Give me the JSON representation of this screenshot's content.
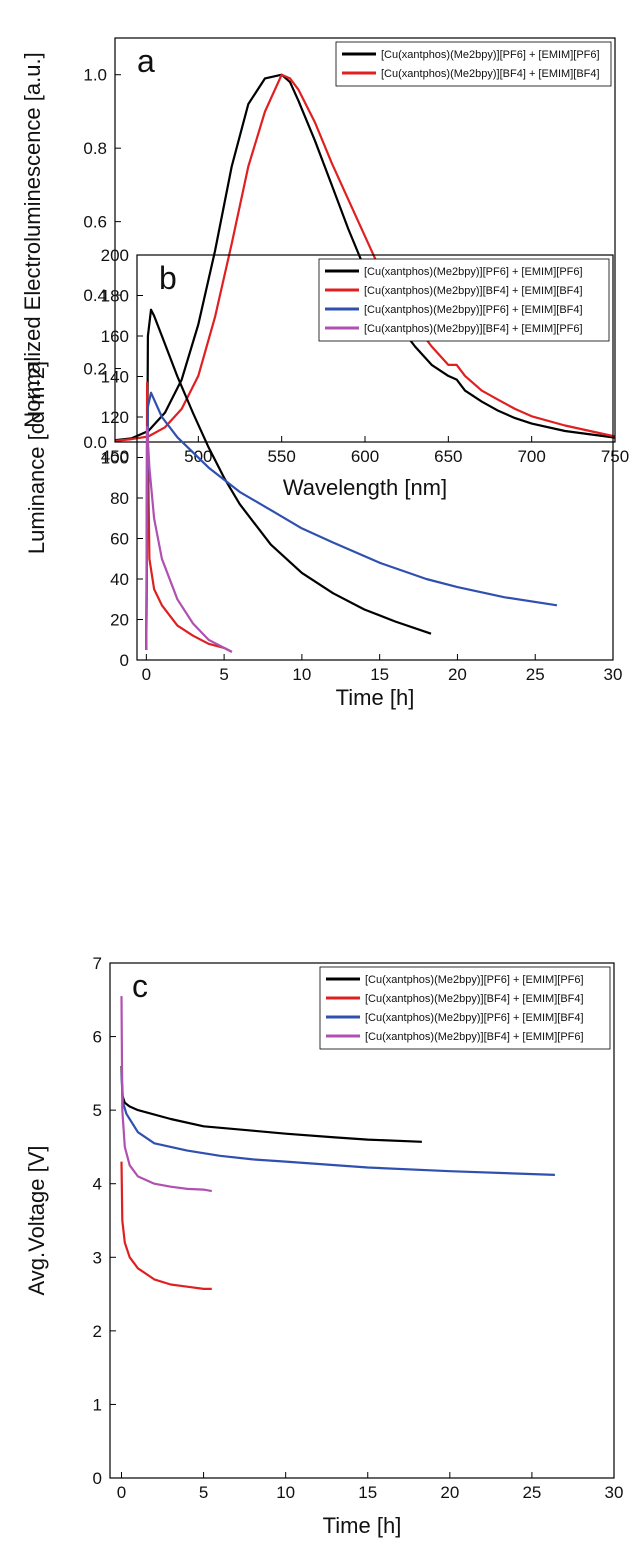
{
  "chart_data": [
    {
      "type": "line",
      "panel_label": "a",
      "x_label": "Wavelength [nm]",
      "y_label": "Normalized Electroluminescence [a.u.]",
      "legend": "upper right",
      "x": [
        450,
        460,
        470,
        480,
        490,
        500,
        510,
        520,
        530,
        540,
        550,
        555,
        560,
        570,
        580,
        590,
        600,
        610,
        615,
        618,
        620,
        630,
        640,
        650,
        655,
        660,
        670,
        680,
        690,
        700,
        720,
        750
      ],
      "series": [
        {
          "name": "[Cu(xantphos)(Me2bpy)][PF6] + [EMIM][PF6]",
          "color": "#000000",
          "values": [
            0.005,
            0.01,
            0.03,
            0.08,
            0.17,
            0.32,
            0.52,
            0.75,
            0.92,
            0.99,
            1.0,
            0.98,
            0.93,
            0.82,
            0.7,
            0.58,
            0.47,
            0.38,
            0.33,
            0.34,
            0.32,
            0.26,
            0.21,
            0.18,
            0.17,
            0.14,
            0.11,
            0.085,
            0.065,
            0.05,
            0.03,
            0.012
          ]
        },
        {
          "name": "[Cu(xantphos)(Me2bpy)][BF4] + [EMIM][BF4]",
          "color": "#e02020",
          "values": [
            0.003,
            0.008,
            0.015,
            0.04,
            0.09,
            0.18,
            0.34,
            0.54,
            0.75,
            0.9,
            1.0,
            0.99,
            0.96,
            0.87,
            0.76,
            0.66,
            0.56,
            0.46,
            0.39,
            0.4,
            0.38,
            0.32,
            0.26,
            0.21,
            0.21,
            0.18,
            0.14,
            0.115,
            0.09,
            0.07,
            0.045,
            0.015
          ]
        }
      ],
      "xlim": [
        450,
        750
      ],
      "xticks": [
        450,
        500,
        550,
        600,
        650,
        700,
        750
      ],
      "ylim": [
        0,
        1.1
      ],
      "yticks": [
        {
          "value": 0,
          "label": "0.0"
        },
        0.2,
        0.4,
        0.6,
        0.8,
        {
          "value": 1,
          "label": "1.0"
        }
      ]
    },
    {
      "type": "line",
      "panel_label": "b",
      "x_label": "Time [h]",
      "y_label": "Luminance [cd m-2]",
      "legend": "upper right",
      "series": [
        {
          "name": "[Cu(xantphos)(Me2bpy)][PF6] + [EMIM][PF6]",
          "color": "#000000",
          "x": [
            0,
            0.1,
            0.3,
            0.5,
            1,
            2,
            3,
            4,
            5,
            6,
            8,
            10,
            12,
            14,
            16,
            18.3
          ],
          "values": [
            5,
            160,
            173,
            170,
            160,
            140,
            122,
            105,
            90,
            77,
            57,
            43,
            33,
            25,
            19,
            13
          ]
        },
        {
          "name": "[Cu(xantphos)(Me2bpy)][BF4] + [EMIM][BF4]",
          "color": "#e02020",
          "x": [
            0,
            0.05,
            0.2,
            0.5,
            1,
            2,
            3,
            4,
            5,
            5.5
          ],
          "values": [
            5,
            137,
            50,
            35,
            27,
            17,
            12,
            8,
            6,
            4
          ]
        },
        {
          "name": "[Cu(xantphos)(Me2bpy)][PF6] + [EMIM][BF4]",
          "color": "#3050b0",
          "x": [
            0,
            0.1,
            0.3,
            1,
            2,
            4,
            6,
            8,
            10,
            12,
            15,
            18,
            20,
            23,
            26.4
          ],
          "values": [
            5,
            125,
            132,
            120,
            110,
            95,
            83,
            74,
            65,
            58,
            48,
            40,
            36,
            31,
            27
          ]
        },
        {
          "name": "[Cu(xantphos)(Me2bpy)][BF4] + [EMIM][PF6]",
          "color": "#b050b0",
          "x": [
            0,
            0.05,
            0.2,
            0.5,
            1,
            2,
            3,
            4,
            5,
            5.5
          ],
          "values": [
            5,
            115,
            95,
            70,
            50,
            30,
            18,
            10,
            6,
            4
          ]
        }
      ],
      "xlim": [
        -0.6,
        30
      ],
      "xticks": [
        0,
        5,
        10,
        15,
        20,
        25,
        30
      ],
      "ylim": [
        0,
        200
      ],
      "yticks": [
        0,
        20,
        40,
        60,
        80,
        100,
        120,
        140,
        160,
        180,
        200
      ]
    },
    {
      "type": "line",
      "panel_label": "c",
      "x_label": "Time [h]",
      "y_label": "Avg.Voltage [V]",
      "legend": "upper right",
      "series": [
        {
          "name": "[Cu(xantphos)(Me2bpy)][PF6] + [EMIM][PF6]",
          "color": "#000000",
          "x": [
            0,
            0.05,
            0.2,
            0.5,
            1,
            3,
            5,
            8,
            10,
            13,
            15,
            18.3
          ],
          "values": [
            5.6,
            5.2,
            5.1,
            5.05,
            5.0,
            4.88,
            4.78,
            4.72,
            4.68,
            4.63,
            4.6,
            4.57
          ]
        },
        {
          "name": "[Cu(xantphos)(Me2bpy)][BF4] + [EMIM][BF4]",
          "color": "#e02020",
          "x": [
            0,
            0.05,
            0.2,
            0.5,
            1,
            2,
            3,
            4,
            5,
            5.5
          ],
          "values": [
            4.3,
            3.5,
            3.2,
            3.0,
            2.85,
            2.7,
            2.63,
            2.6,
            2.57,
            2.57
          ]
        },
        {
          "name": "[Cu(xantphos)(Me2bpy)][PF6] + [EMIM][BF4]",
          "color": "#3050b0",
          "x": [
            0,
            0.1,
            0.3,
            1,
            2,
            4,
            6,
            8,
            10,
            15,
            20,
            26.4
          ],
          "values": [
            5.5,
            5.1,
            4.95,
            4.7,
            4.55,
            4.45,
            4.38,
            4.33,
            4.3,
            4.22,
            4.17,
            4.12
          ]
        },
        {
          "name": "[Cu(xantphos)(Me2bpy)][BF4] + [EMIM][PF6]",
          "color": "#b050b0",
          "x": [
            0,
            0.05,
            0.2,
            0.5,
            1,
            2,
            3,
            4,
            5,
            5.5
          ],
          "values": [
            6.55,
            5.0,
            4.5,
            4.25,
            4.1,
            4.0,
            3.96,
            3.93,
            3.92,
            3.9
          ]
        }
      ],
      "xlim": [
        -0.7,
        30
      ],
      "xticks": [
        0,
        5,
        10,
        15,
        20,
        25,
        30
      ],
      "ylim": [
        0,
        7
      ],
      "yticks": [
        0,
        1,
        2,
        3,
        4,
        5,
        6,
        7
      ]
    }
  ]
}
